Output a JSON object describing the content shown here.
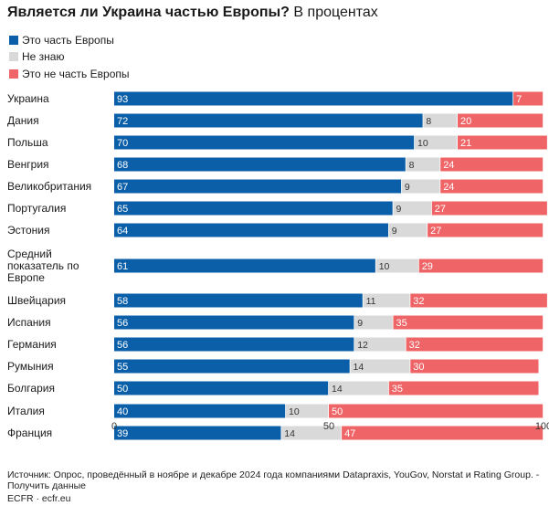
{
  "header": {
    "title_bold": "Является ли Украина частью Европы?",
    "title_light": "В процентах"
  },
  "chart_data": {
    "type": "bar",
    "orientation": "horizontal",
    "stacked": true,
    "categories": [
      "Украина",
      "Дания",
      "Польша",
      "Венгрия",
      "Великобритания",
      "Португалия",
      "Эстония",
      "Средний показатель по Европе",
      "Швейцария",
      "Испания",
      "Германия",
      "Румыния",
      "Болгария",
      "Италия",
      "Франция"
    ],
    "series": [
      {
        "name": "Это часть Европы",
        "color": "#0a5fa8",
        "values": [
          93,
          72,
          70,
          68,
          67,
          65,
          64,
          61,
          58,
          56,
          56,
          55,
          50,
          40,
          39
        ]
      },
      {
        "name": "Не знаю",
        "color": "#d9d9d9",
        "values": [
          null,
          8,
          10,
          8,
          9,
          9,
          9,
          10,
          11,
          9,
          12,
          14,
          14,
          10,
          14
        ]
      },
      {
        "name": "Это не часть Европы",
        "color": "#ef6466",
        "values": [
          7,
          20,
          21,
          24,
          24,
          27,
          27,
          29,
          32,
          35,
          32,
          30,
          35,
          50,
          47
        ]
      }
    ],
    "xlim": [
      0,
      100
    ],
    "xticks": [
      "0",
      "50",
      "100"
    ],
    "legend": "top-left",
    "grid": false
  },
  "footer": {
    "source": "Источник: Опрос, проведённый в ноябре и декабре 2024 года компаниями Dataprаxis, YouGov, Norstat и Rating Group. - Получить данные",
    "credit": "ECFR · ecfr.eu"
  }
}
